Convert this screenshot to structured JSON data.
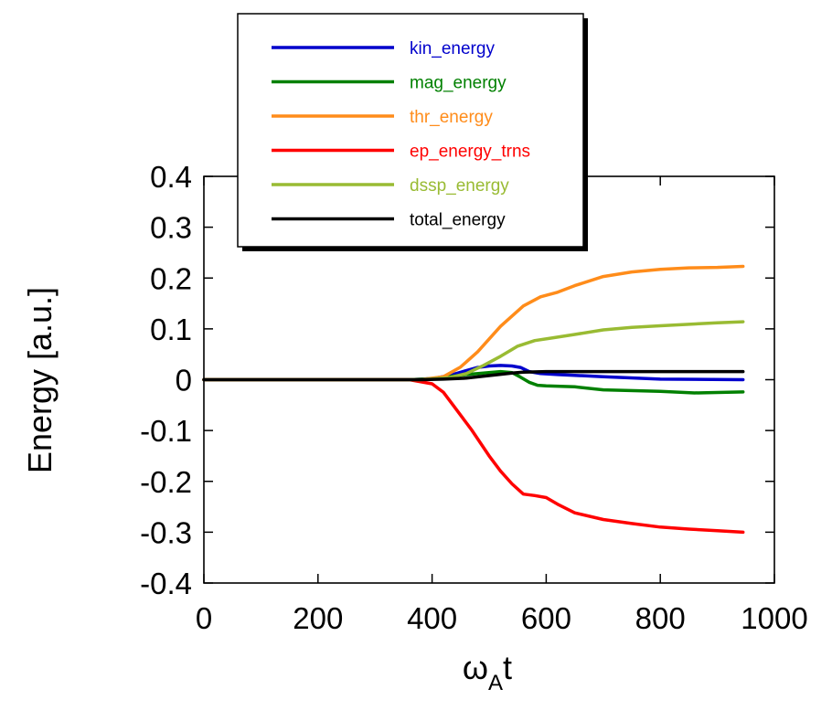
{
  "chart_data": {
    "type": "line",
    "xlabel": "ω",
    "xlabel_sub": "A",
    "xlabel_tail": "t",
    "ylabel": "Energy [a.u.]",
    "xlim": [
      0,
      1000
    ],
    "ylim": [
      -0.4,
      0.4
    ],
    "xticks": [
      0,
      200,
      400,
      600,
      800,
      1000
    ],
    "yticks": [
      0.4,
      0.3,
      0.2,
      0.1,
      0,
      -0.1,
      -0.2,
      -0.3,
      -0.4
    ],
    "xtick_labels": [
      "0",
      "200",
      "400",
      "600",
      "800",
      "1000"
    ],
    "ytick_labels": [
      "0.4",
      "0.3",
      "0.2",
      "0.1",
      "0",
      "-0.1",
      "-0.2",
      "-0.3",
      "-0.4"
    ],
    "grid": false,
    "legend_position": "top",
    "series": [
      {
        "name": "kin_energy",
        "color": "#0000cc",
        "x": [
          0,
          360,
          400,
          430,
          460,
          480,
          500,
          520,
          540,
          555,
          570,
          590,
          620,
          700,
          800,
          945
        ],
        "y": [
          0,
          0,
          0.002,
          0.008,
          0.018,
          0.024,
          0.027,
          0.028,
          0.027,
          0.024,
          0.016,
          0.012,
          0.01,
          0.006,
          0.001,
          0.0
        ]
      },
      {
        "name": "mag_energy",
        "color": "#008000",
        "x": [
          0,
          360,
          400,
          430,
          460,
          490,
          520,
          540,
          555,
          570,
          585,
          600,
          650,
          700,
          800,
          860,
          945
        ],
        "y": [
          0,
          0,
          0.002,
          0.006,
          0.01,
          0.013,
          0.016,
          0.014,
          0.005,
          -0.005,
          -0.011,
          -0.012,
          -0.014,
          -0.02,
          -0.023,
          -0.026,
          -0.024
        ]
      },
      {
        "name": "thr_energy",
        "color": "#ff8c1a",
        "x": [
          0,
          380,
          420,
          450,
          480,
          520,
          560,
          590,
          620,
          650,
          700,
          750,
          800,
          850,
          900,
          945
        ],
        "y": [
          0,
          0,
          0.006,
          0.025,
          0.055,
          0.105,
          0.145,
          0.163,
          0.172,
          0.185,
          0.203,
          0.212,
          0.217,
          0.22,
          0.221,
          0.223
        ]
      },
      {
        "name": "ep_energy_trns",
        "color": "#ff0000",
        "x": [
          0,
          360,
          400,
          420,
          440,
          470,
          500,
          520,
          540,
          560,
          580,
          600,
          620,
          650,
          700,
          750,
          800,
          850,
          900,
          945
        ],
        "y": [
          0,
          0,
          -0.008,
          -0.025,
          -0.055,
          -0.1,
          -0.15,
          -0.18,
          -0.205,
          -0.225,
          -0.228,
          -0.232,
          -0.245,
          -0.262,
          -0.275,
          -0.283,
          -0.29,
          -0.294,
          -0.297,
          -0.3
        ]
      },
      {
        "name": "dssp_energy",
        "color": "#99bb33",
        "x": [
          0,
          380,
          430,
          460,
          490,
          520,
          550,
          580,
          610,
          650,
          700,
          750,
          800,
          850,
          900,
          945
        ],
        "y": [
          0,
          0,
          0.004,
          0.012,
          0.028,
          0.046,
          0.066,
          0.077,
          0.082,
          0.089,
          0.098,
          0.103,
          0.106,
          0.109,
          0.112,
          0.114
        ]
      },
      {
        "name": "total_energy",
        "color": "#000000",
        "x": [
          0,
          380,
          420,
          460,
          500,
          540,
          560,
          600,
          700,
          800,
          945
        ],
        "y": [
          0,
          0,
          0.001,
          0.003,
          0.008,
          0.013,
          0.015,
          0.016,
          0.016,
          0.016,
          0.016
        ]
      }
    ]
  }
}
